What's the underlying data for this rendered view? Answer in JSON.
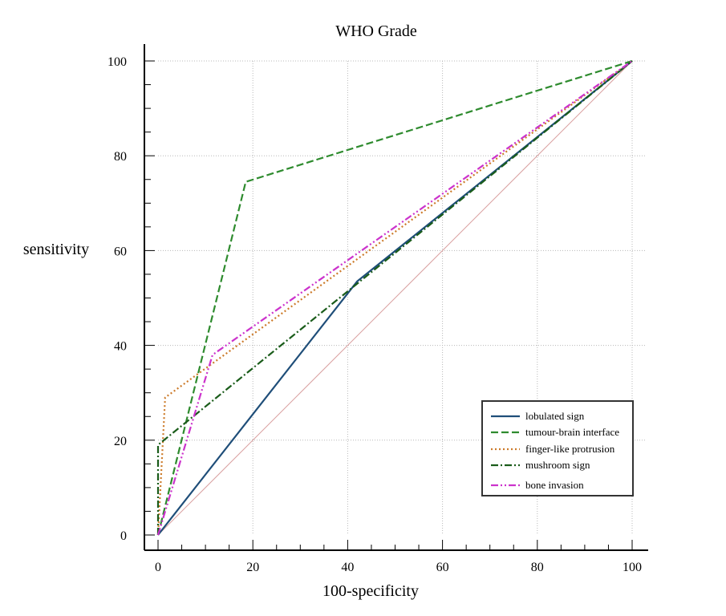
{
  "chart_data": {
    "type": "line",
    "title": "WHO Grade",
    "xlabel": "100-specificity",
    "ylabel": "sensitivity",
    "xlim": [
      0,
      100
    ],
    "ylim": [
      0,
      100
    ],
    "xticks": [
      0,
      20,
      40,
      60,
      80,
      100
    ],
    "yticks": [
      0,
      20,
      40,
      60,
      80,
      100
    ],
    "grid": true,
    "legend_position": "bottom-right",
    "reference_line": {
      "x": [
        0,
        100
      ],
      "y": [
        0,
        100
      ],
      "color": "#d9a0a0"
    },
    "series": [
      {
        "name": "lobulated sign",
        "color": "#1f4e79",
        "dash": "solid",
        "x": [
          0,
          42,
          100
        ],
        "y": [
          0,
          53.5,
          100
        ]
      },
      {
        "name": "tumour-brain interface",
        "color": "#2e8b2e",
        "dash": "dashed",
        "x": [
          0,
          18.5,
          100
        ],
        "y": [
          0,
          74.5,
          100
        ]
      },
      {
        "name": "finger-like protrusion",
        "color": "#cc7a29",
        "dash": "dotted",
        "x": [
          0,
          1.5,
          100
        ],
        "y": [
          0,
          29,
          100
        ]
      },
      {
        "name": "mushroom sign",
        "color": "#1a5c1a",
        "dash": "dashdot",
        "x": [
          0,
          0,
          100
        ],
        "y": [
          0,
          19,
          100
        ]
      },
      {
        "name": "bone invasion",
        "color": "#cc33cc",
        "dash": "dashdotdot",
        "x": [
          0,
          11.5,
          100
        ],
        "y": [
          0,
          38,
          100
        ]
      }
    ]
  }
}
